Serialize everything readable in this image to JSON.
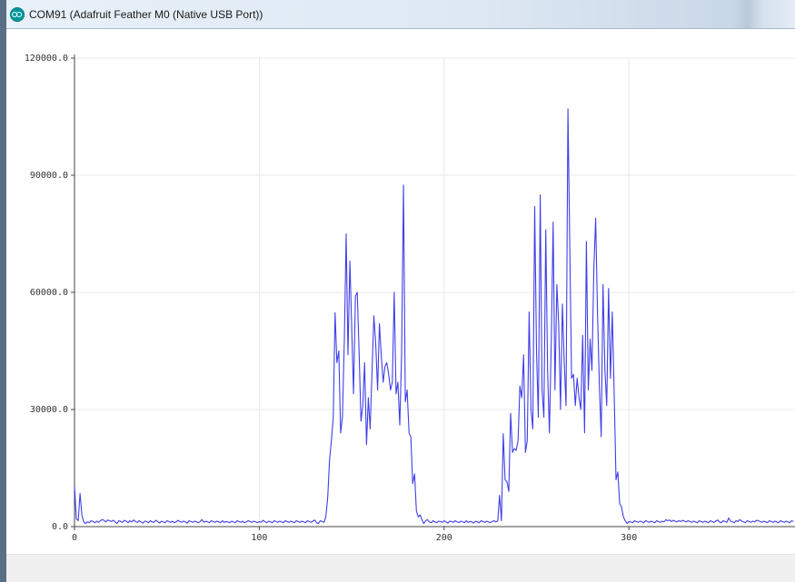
{
  "window": {
    "title": "COM91 (Adafruit Feather M0 (Native USB Port))",
    "icon": "arduino-icon"
  },
  "colors": {
    "series": "#3f3fe8",
    "grid": "#e8e8e8",
    "axis": "#444444",
    "bottom_bar": "#f0f0f0"
  },
  "chart_data": {
    "type": "line",
    "title": "",
    "xlabel": "",
    "ylabel": "",
    "xlim": [
      0,
      390
    ],
    "ylim": [
      0,
      120000
    ],
    "x_ticks": [
      "0",
      "100",
      "200",
      "300"
    ],
    "x_tick_values": [
      0,
      100,
      200,
      300
    ],
    "y_ticks": [
      "0.0",
      "30000.0",
      "60000.0",
      "90000.0",
      "120000.0"
    ],
    "y_tick_values": [
      0,
      30000,
      60000,
      90000,
      120000
    ],
    "grid": true,
    "series": [
      {
        "name": "",
        "values": [
          10500,
          2000,
          1500,
          8500,
          3000,
          1200,
          800,
          1200,
          1000,
          1500,
          1300,
          1000,
          1400,
          1100,
          1500,
          1800,
          1600,
          1200,
          1700,
          1500,
          1300,
          1600,
          1200,
          800,
          1500,
          1300,
          1100,
          1600,
          1400,
          1000,
          1500,
          1200,
          1700,
          1300,
          1100,
          1500,
          1200,
          900,
          1400,
          1300,
          1000,
          1500,
          1200,
          1100,
          1600,
          1300,
          900,
          1400,
          1200,
          1000,
          1500,
          1300,
          1100,
          1400,
          1000,
          1200,
          1600,
          1300,
          1100,
          1400,
          1200,
          900,
          1500,
          1300,
          1100,
          1400,
          1200,
          1000,
          1300,
          1800,
          1100,
          1400,
          1200,
          1000,
          1500,
          1300,
          1100,
          1400,
          1200,
          1000,
          1500,
          1100,
          1300,
          1200,
          1000,
          1400,
          1200,
          1000,
          1500,
          1300,
          1100,
          1400,
          1000,
          1200,
          1500,
          1300,
          1100,
          1400,
          1200,
          1000,
          1300,
          1100,
          1600,
          1300,
          1000,
          1400,
          1200,
          1000,
          1500,
          1300,
          1100,
          1400,
          1200,
          1000,
          1500,
          1300,
          1100,
          1400,
          1200,
          1000,
          1500,
          1300,
          1100,
          1400,
          1200,
          1000,
          1500,
          1300,
          1100,
          1400,
          1700,
          1000,
          800,
          1500,
          1300,
          1100,
          2500,
          7500,
          17000,
          22000,
          28000,
          54800,
          42000,
          45000,
          24000,
          28000,
          48000,
          75000,
          44000,
          68000,
          51000,
          34000,
          59000,
          60000,
          45000,
          27000,
          31000,
          42000,
          21000,
          33000,
          25000,
          40000,
          54000,
          47000,
          35000,
          52000,
          44000,
          37000,
          41000,
          42000,
          39000,
          35000,
          37000,
          60000,
          34000,
          37000,
          26000,
          44000,
          87500,
          32000,
          35000,
          24000,
          23000,
          11000,
          13500,
          4000,
          2500,
          3000,
          1800,
          800,
          1500,
          1800,
          1200,
          1000,
          1500,
          1200,
          1000,
          1400,
          1300,
          1100,
          1500,
          1200,
          900,
          1400,
          1300,
          1100,
          1500,
          1200,
          1000,
          1400,
          1200,
          1000,
          1500,
          1100,
          1300,
          1200,
          900,
          1400,
          1200,
          1000,
          1500,
          1300,
          1100,
          1400,
          1200,
          1000,
          1300,
          1500,
          1200,
          1400,
          8000,
          1500,
          23800,
          12000,
          11500,
          9000,
          29000,
          19000,
          20000,
          19500,
          22000,
          36000,
          33000,
          44000,
          19000,
          22000,
          55000,
          30000,
          25000,
          82000,
          45000,
          28000,
          85000,
          35000,
          28000,
          76000,
          40000,
          24000,
          48000,
          78000,
          35000,
          62000,
          52000,
          30000,
          57000,
          42000,
          31000,
          107000,
          72000,
          38000,
          39000,
          31000,
          38000,
          33000,
          30000,
          49000,
          24000,
          73000,
          35000,
          48000,
          40000,
          66000,
          79000,
          55000,
          36000,
          23000,
          62000,
          40000,
          31000,
          61000,
          38000,
          55000,
          35000,
          12000,
          14000,
          6000,
          5000,
          2500,
          1500,
          800,
          1300,
          1200,
          1000,
          1500,
          1300,
          1100,
          1400,
          1200,
          1000,
          1500,
          1300,
          1100,
          1400,
          1200,
          1000,
          1500,
          1300,
          1100,
          1400,
          1200,
          1800,
          1500,
          1700,
          1300,
          1600,
          1400,
          1200,
          1500,
          1300,
          1600,
          1400,
          1200,
          1500,
          1300,
          1100,
          1400,
          1200,
          1000,
          1500,
          1300,
          1100,
          1400,
          1200,
          1000,
          1500,
          1300,
          1100,
          1400,
          1700,
          1200,
          1000,
          1500,
          1300,
          1100,
          2200,
          1400,
          1200,
          1000,
          1500,
          1300,
          1800,
          1400,
          1200,
          1000,
          1500,
          1300,
          1100,
          1400,
          1200,
          1600,
          1500,
          1300,
          1100,
          1400,
          1200,
          1000,
          1500,
          1300,
          1100,
          1400,
          1200,
          1000,
          1500,
          1300,
          1100,
          1400,
          1200,
          1000,
          1500,
          1300
        ]
      }
    ]
  }
}
